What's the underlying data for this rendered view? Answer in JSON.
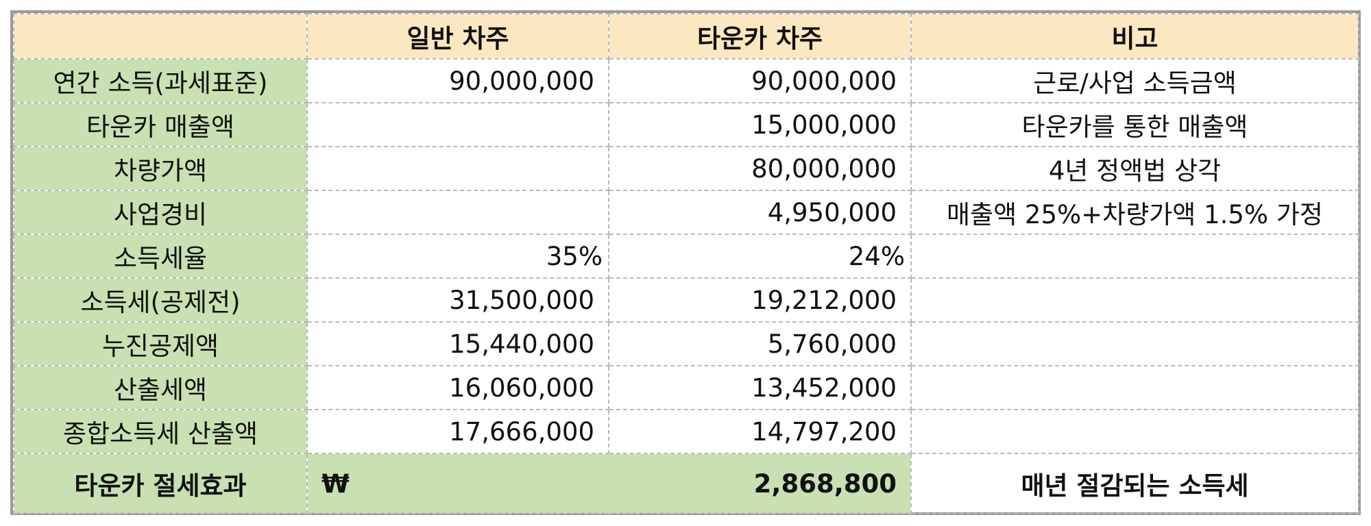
{
  "header": {
    "corner": "",
    "col1": "일반 차주",
    "col2": "타운카 차주",
    "col3": "비고"
  },
  "rows": [
    {
      "label": "연간 소득(과세표준)",
      "general": "90,000,000",
      "towncar": "90,000,000",
      "note": "근로/사업 소득금액"
    },
    {
      "label": "타운카 매출액",
      "general": "",
      "towncar": "15,000,000",
      "note": "타운카를 통한 매출액"
    },
    {
      "label": "차량가액",
      "general": "",
      "towncar": "80,000,000",
      "note": "4년 정액법 상각"
    },
    {
      "label": "사업경비",
      "general": "",
      "towncar": "4,950,000",
      "note": "매출액 25%+차량가액 1.5% 가정"
    },
    {
      "label": "소득세율",
      "general": "35%",
      "towncar": "24%",
      "note": ""
    },
    {
      "label": "소득세(공제전)",
      "general": "31,500,000",
      "towncar": "19,212,000",
      "note": ""
    },
    {
      "label": "누진공제액",
      "general": "15,440,000",
      "towncar": "5,760,000",
      "note": ""
    },
    {
      "label": "산출세액",
      "general": "16,060,000",
      "towncar": "13,452,000",
      "note": ""
    },
    {
      "label": "종합소득세 산출액",
      "general": "17,666,000",
      "towncar": "14,797,200",
      "note": ""
    }
  ],
  "total": {
    "label": "타운카 절세효과",
    "currency": "₩",
    "amount": "2,868,800",
    "note": "매년 절감되는 소득세"
  }
}
